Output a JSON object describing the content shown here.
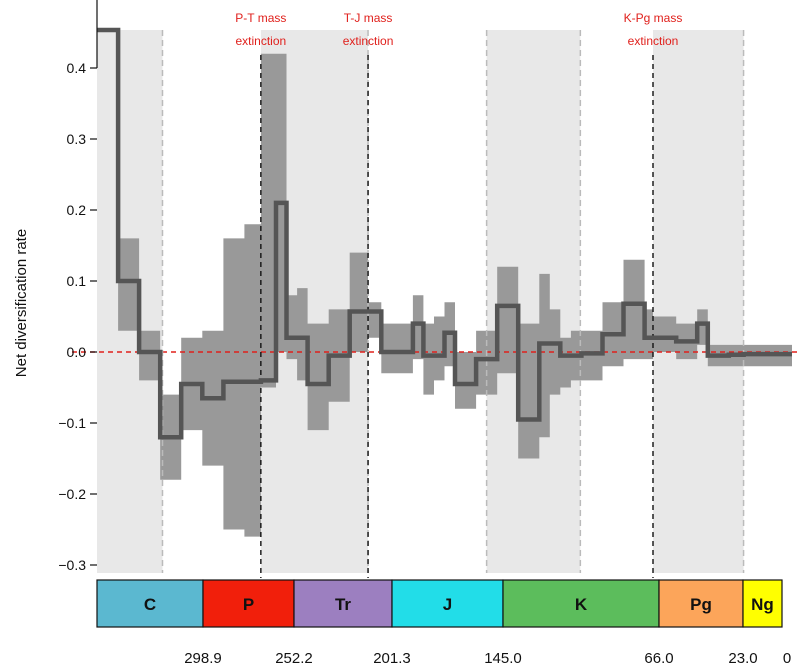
{
  "chart_data": {
    "type": "line",
    "title": "",
    "xlabel": "",
    "ylabel": "Net diversification rate",
    "xlim": [
      330,
      0
    ],
    "ylim": [
      -0.3,
      0.4
    ],
    "y_ticks": [
      0.4,
      0.3,
      0.2,
      0.1,
      0.0,
      -0.1,
      -0.2,
      -0.3
    ],
    "y_tick_labels": [
      "0.4",
      "0.3",
      "0.2",
      "0.1",
      "0.0",
      "−0.1",
      "−0.2",
      "−0.3"
    ],
    "zero_line": {
      "y": 0,
      "color": "#e0201c",
      "style": "dashed"
    },
    "series": [
      {
        "type": "step",
        "color": "#555555",
        "x": [
          330,
          320,
          310,
          300,
          290,
          280,
          270,
          260,
          252.2,
          245,
          240,
          235,
          230,
          220,
          210,
          201.3,
          195,
          190,
          180,
          175,
          170,
          165,
          160,
          150,
          145,
          140,
          130,
          120,
          115,
          110,
          105,
          100,
          90,
          80,
          70,
          66,
          55,
          50,
          45,
          40,
          30,
          23,
          20,
          10,
          0
        ],
        "y": [
          0.5,
          0.1,
          0.0,
          -0.12,
          -0.045,
          -0.065,
          -0.042,
          -0.042,
          -0.04,
          0.21,
          0.02,
          0.02,
          -0.045,
          -0.005,
          0.057,
          0.057,
          0.0,
          0.0,
          0.04,
          -0.005,
          -0.005,
          0.027,
          -0.045,
          -0.01,
          -0.01,
          0.065,
          -0.095,
          0.012,
          0.012,
          -0.005,
          -0.005,
          -0.002,
          0.025,
          0.068,
          0.02,
          0.02,
          0.015,
          0.015,
          0.04,
          -0.005,
          -0.004,
          -0.003,
          -0.003,
          -0.003,
          -0.003
        ],
        "lower": [
          0.5,
          0.03,
          -0.04,
          -0.18,
          -0.11,
          -0.16,
          -0.25,
          -0.26,
          -0.05,
          0.0,
          -0.01,
          -0.04,
          -0.11,
          -0.07,
          0.0,
          0.02,
          -0.03,
          -0.03,
          -0.01,
          -0.06,
          -0.04,
          -0.02,
          -0.08,
          -0.06,
          -0.06,
          -0.03,
          -0.15,
          -0.12,
          -0.06,
          -0.05,
          -0.04,
          -0.04,
          -0.02,
          -0.01,
          -0.01,
          0.0,
          -0.01,
          -0.01,
          0.01,
          -0.02,
          -0.02,
          -0.02,
          -0.02,
          -0.02,
          -0.02
        ],
        "upper": [
          0.5,
          0.16,
          0.03,
          -0.06,
          0.02,
          0.03,
          0.16,
          0.18,
          0.42,
          0.42,
          0.08,
          0.09,
          0.04,
          0.06,
          0.14,
          0.07,
          0.04,
          0.04,
          0.08,
          0.04,
          0.05,
          0.07,
          0.0,
          0.03,
          0.03,
          0.12,
          0.04,
          0.11,
          0.06,
          0.02,
          0.03,
          0.03,
          0.07,
          0.13,
          0.06,
          0.05,
          0.04,
          0.04,
          0.06,
          0.01,
          0.01,
          0.01,
          0.01,
          0.01,
          0.01
        ]
      }
    ],
    "shaded_bands": [
      [
        330,
        298.9
      ],
      [
        252.2,
        201.3
      ],
      [
        145.0,
        100.5
      ],
      [
        66.0,
        23.0
      ]
    ],
    "gray_dashed_lines": [
      298.9,
      201.3,
      145.0,
      100.5,
      23.0
    ],
    "extinctions": [
      {
        "x": 252.2,
        "label_line1": "P-T mass",
        "label_line2": "extinction"
      },
      {
        "x": 201.3,
        "label_line1": "T-J mass",
        "label_line2": "extinction"
      },
      {
        "x": 66.0,
        "label_line1": "K-Pg mass",
        "label_line2": "extinction"
      }
    ],
    "periods": [
      {
        "label": "C",
        "start": 340,
        "end": 298.9,
        "color": "#5bb8d0"
      },
      {
        "label": "P",
        "start": 298.9,
        "end": 252.2,
        "color": "#f11f0b"
      },
      {
        "label": "Tr",
        "start": 252.2,
        "end": 201.3,
        "color": "#9c7fc0"
      },
      {
        "label": "J",
        "start": 201.3,
        "end": 145.0,
        "color": "#22dde8"
      },
      {
        "label": "K",
        "start": 145.0,
        "end": 66.0,
        "color": "#5cbd5c"
      },
      {
        "label": "Pg",
        "start": 66.0,
        "end": 23.0,
        "color": "#fca55a"
      },
      {
        "label": "Ng",
        "start": 23.0,
        "end": 0,
        "color": "#ffff00"
      }
    ],
    "age_labels": [
      {
        "x": 298.9,
        "text": "298.9"
      },
      {
        "x": 252.2,
        "text": "252.2"
      },
      {
        "x": 201.3,
        "text": "201.3"
      },
      {
        "x": 145.0,
        "text": "145.0"
      },
      {
        "x": 66.0,
        "text": "66.0"
      },
      {
        "x": 23.0,
        "text": "23.0"
      },
      {
        "x": 0,
        "text": "0"
      }
    ]
  }
}
